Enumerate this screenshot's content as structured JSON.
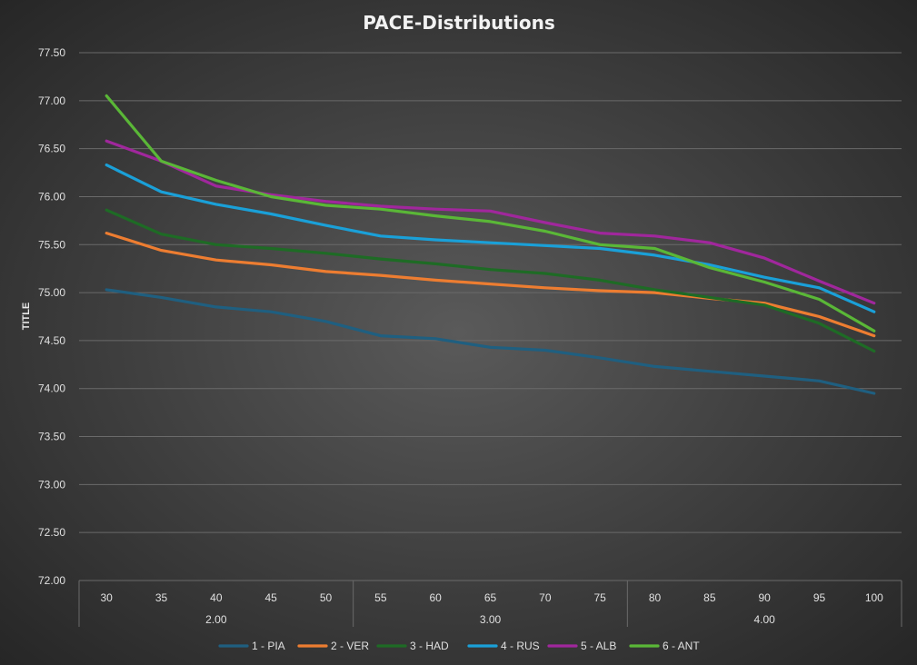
{
  "chart_data": {
    "type": "line",
    "title": "PACE-Distributions",
    "ylabel": "TITLE",
    "xlabel": "",
    "ylim": [
      72.0,
      77.5
    ],
    "yticks": [
      "72.00",
      "72.50",
      "73.00",
      "73.50",
      "74.00",
      "74.50",
      "75.00",
      "75.50",
      "76.00",
      "76.50",
      "77.00",
      "77.50"
    ],
    "categories": [
      "30",
      "35",
      "40",
      "45",
      "50",
      "55",
      "60",
      "65",
      "70",
      "75",
      "80",
      "85",
      "90",
      "95",
      "100"
    ],
    "groups": [
      {
        "label": "2.00",
        "span": 5
      },
      {
        "label": "3.00",
        "span": 5
      },
      {
        "label": "4.00",
        "span": 5
      }
    ],
    "grid": true,
    "legend_position": "bottom",
    "series": [
      {
        "name": "1 - PIA",
        "color": "#1f5f80",
        "values": [
          75.03,
          74.95,
          74.85,
          74.8,
          74.7,
          74.55,
          74.52,
          74.43,
          74.4,
          74.32,
          74.23,
          74.18,
          74.13,
          74.08,
          73.95
        ]
      },
      {
        "name": "2 - VER",
        "color": "#ed7d31",
        "values": [
          75.62,
          75.44,
          75.34,
          75.29,
          75.22,
          75.18,
          75.13,
          75.09,
          75.05,
          75.02,
          75.0,
          74.94,
          74.89,
          74.75,
          74.55
        ]
      },
      {
        "name": "3 - HAD",
        "color": "#1e6b25",
        "values": [
          75.86,
          75.61,
          75.5,
          75.46,
          75.41,
          75.35,
          75.3,
          75.24,
          75.2,
          75.13,
          75.03,
          74.95,
          74.87,
          74.68,
          74.39
        ]
      },
      {
        "name": "4 - RUS",
        "color": "#1aa0d8",
        "values": [
          76.33,
          76.05,
          75.92,
          75.82,
          75.7,
          75.59,
          75.55,
          75.52,
          75.49,
          75.46,
          75.39,
          75.29,
          75.16,
          75.05,
          74.8
        ]
      },
      {
        "name": "5 - ALB",
        "color": "#a0279c",
        "values": [
          76.58,
          76.37,
          76.11,
          76.02,
          75.95,
          75.9,
          75.87,
          75.85,
          75.73,
          75.62,
          75.59,
          75.52,
          75.36,
          75.12,
          74.89
        ]
      },
      {
        "name": "6 - ANT",
        "color": "#5ab737",
        "values": [
          77.05,
          76.37,
          76.17,
          76.0,
          75.91,
          75.87,
          75.8,
          75.74,
          75.64,
          75.5,
          75.46,
          75.26,
          75.11,
          74.93,
          74.6
        ]
      }
    ]
  }
}
